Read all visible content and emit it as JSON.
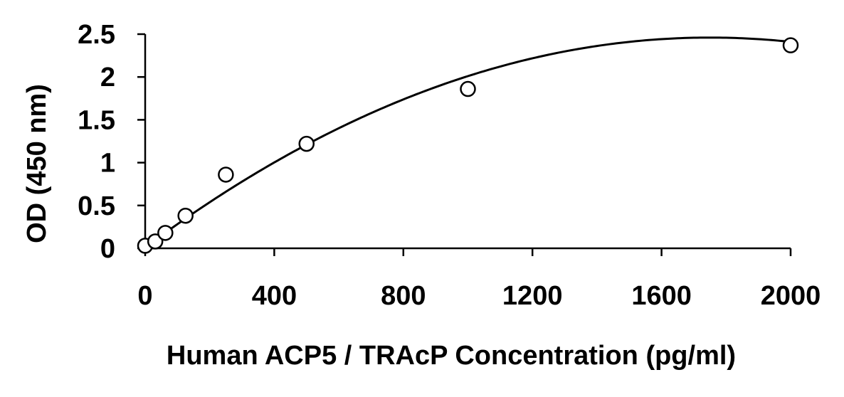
{
  "chart_data": {
    "type": "scatter",
    "title": "",
    "xlabel": "Human ACP5 / TRAcP Concentration (pg/ml)",
    "ylabel": "OD (450 nm)",
    "xlim": [
      0,
      2000
    ],
    "ylim": [
      0,
      2.5
    ],
    "x_ticks": [
      0,
      400,
      800,
      1200,
      1600,
      2000
    ],
    "y_ticks": [
      0,
      0.5,
      1,
      1.5,
      2,
      2.5
    ],
    "x_tick_labels": [
      "0",
      "400",
      "800",
      "1200",
      "1600",
      "2000"
    ],
    "y_tick_labels": [
      "0",
      "0.5",
      "1",
      "1.5",
      "2",
      "2.5"
    ],
    "grid": false,
    "series": [
      {
        "points": [
          {
            "x": 0,
            "y": 0.03
          },
          {
            "x": 31.25,
            "y": 0.08
          },
          {
            "x": 62.5,
            "y": 0.18
          },
          {
            "x": 125,
            "y": 0.38
          },
          {
            "x": 250,
            "y": 0.86
          },
          {
            "x": 500,
            "y": 1.22
          },
          {
            "x": 1000,
            "y": 1.86
          },
          {
            "x": 2000,
            "y": 2.37
          }
        ],
        "marker": "open-circle",
        "color": "#000000"
      }
    ],
    "fit": {
      "type": "polynomial",
      "coefficients": [
        0.01,
        0.0028,
        -8e-07
      ],
      "x_range": [
        0,
        2000
      ],
      "color": "#000000"
    }
  }
}
